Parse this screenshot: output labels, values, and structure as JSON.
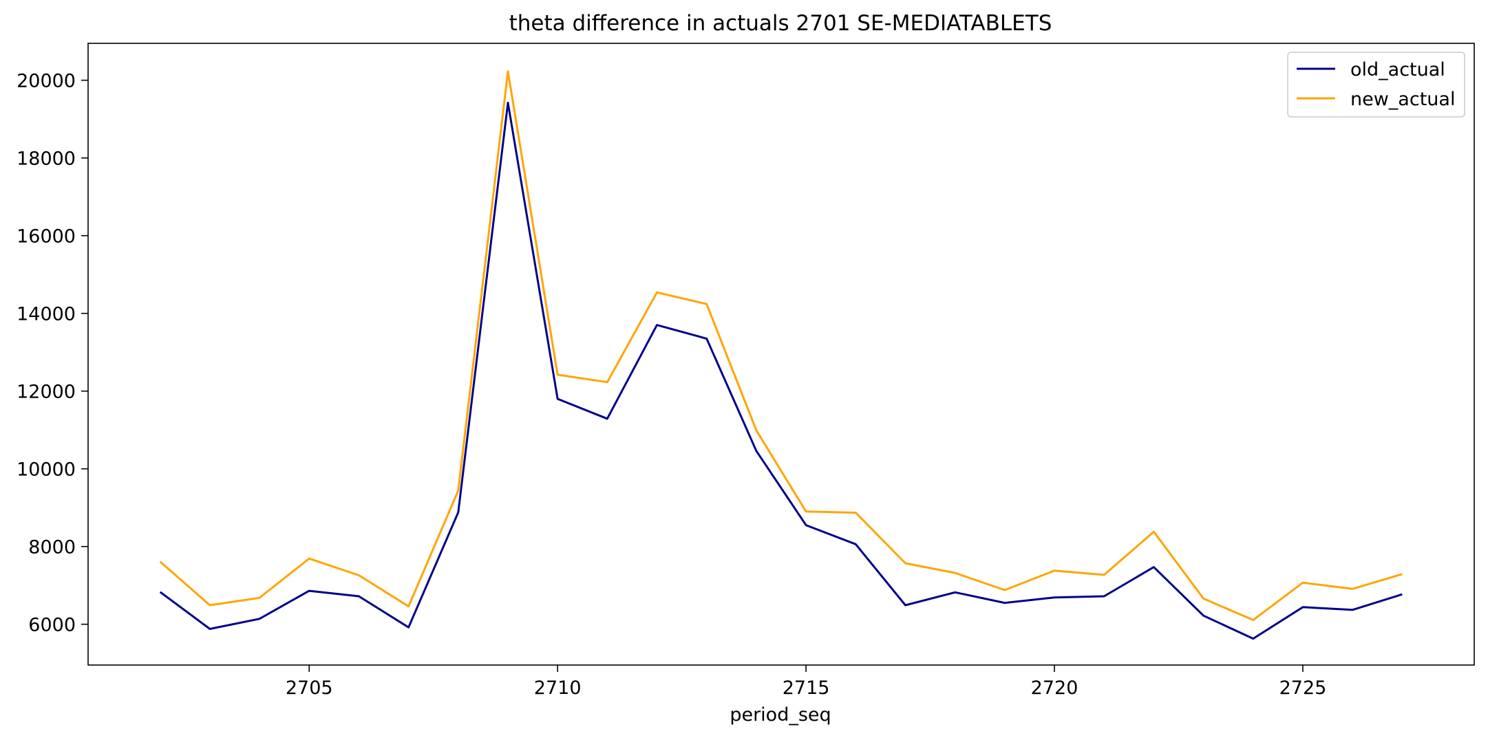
{
  "chart_data": {
    "type": "line",
    "title": "theta difference in actuals 2701 SE-MEDIATABLETS",
    "xlabel": "period_seq",
    "ylabel": "",
    "x": [
      2702,
      2703,
      2704,
      2705,
      2706,
      2707,
      2708,
      2709,
      2710,
      2711,
      2712,
      2713,
      2714,
      2715,
      2716,
      2717,
      2718,
      2719,
      2720,
      2721,
      2722,
      2723,
      2724,
      2725,
      2726,
      2727
    ],
    "xlim": [
      2700.55,
      2728.45
    ],
    "ylim": [
      4950,
      20950
    ],
    "xticks": [
      2705,
      2710,
      2715,
      2720,
      2725
    ],
    "yticks": [
      6000,
      8000,
      10000,
      12000,
      14000,
      16000,
      18000,
      20000
    ],
    "grid": false,
    "legend_position": "top-right",
    "series": [
      {
        "name": "old_actual",
        "color": "#00008b",
        "values": [
          6830,
          5880,
          6140,
          6860,
          6720,
          5920,
          8880,
          19420,
          11800,
          11290,
          13700,
          13350,
          10460,
          8550,
          8060,
          6490,
          6820,
          6550,
          6690,
          6720,
          7470,
          6220,
          5630,
          6440,
          6370,
          6770
        ]
      },
      {
        "name": "new_actual",
        "color": "#ffa500",
        "values": [
          7610,
          6490,
          6680,
          7690,
          7260,
          6460,
          9440,
          20230,
          12420,
          12230,
          14540,
          14240,
          10990,
          8900,
          8870,
          7570,
          7320,
          6880,
          7380,
          7270,
          8380,
          6660,
          6110,
          7070,
          6910,
          7290
        ]
      }
    ]
  }
}
